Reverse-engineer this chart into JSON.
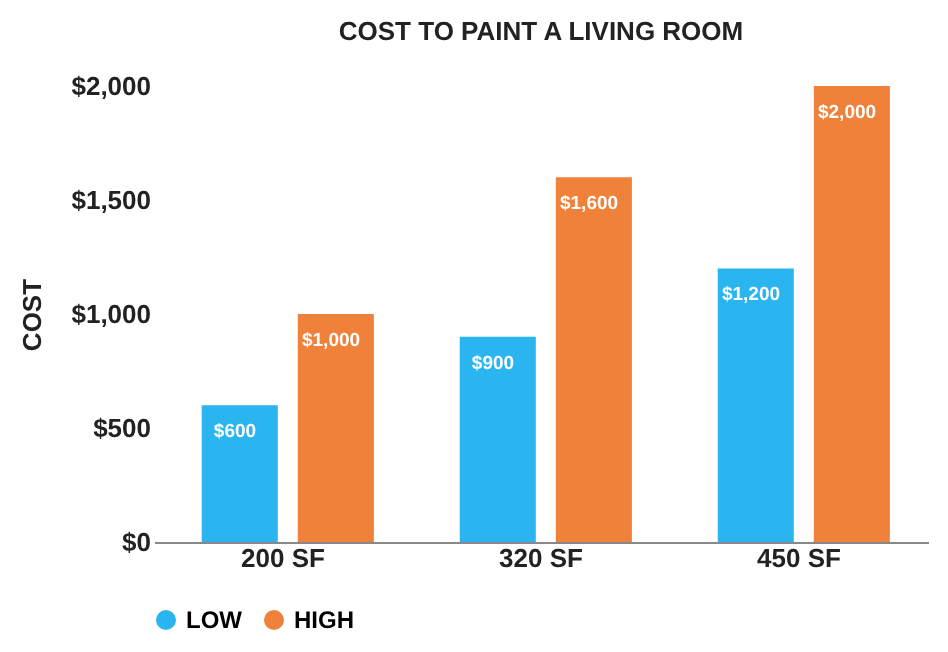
{
  "chart_data": {
    "type": "bar",
    "title": "COST TO PAINT A LIVING ROOM",
    "ylabel": "COST",
    "categories": [
      "200 SF",
      "320 SF",
      "450 SF"
    ],
    "series": [
      {
        "name": "LOW",
        "color": "#2bb5f0",
        "values": [
          600,
          900,
          1200
        ],
        "value_labels": [
          "$600",
          "$900",
          "$1,200"
        ]
      },
      {
        "name": "HIGH",
        "color": "#f0813a",
        "values": [
          1000,
          1600,
          2000
        ],
        "value_labels": [
          "$1,000",
          "$1,600",
          "$2,000"
        ]
      }
    ],
    "ylim": [
      0,
      2000
    ],
    "yticks": [
      {
        "value": 0,
        "label": "$0"
      },
      {
        "value": 500,
        "label": "$500"
      },
      {
        "value": 1000,
        "label": "$1,000"
      },
      {
        "value": 1500,
        "label": "$1,500"
      },
      {
        "value": 2000,
        "label": "$2,000"
      }
    ],
    "grid": false,
    "legend": "bottom"
  }
}
